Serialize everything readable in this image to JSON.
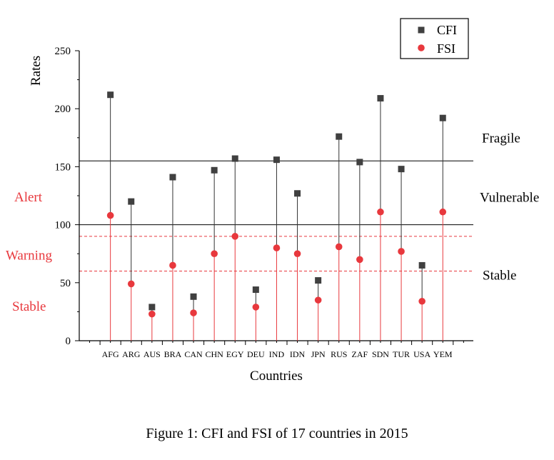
{
  "chart_data": {
    "type": "scatter",
    "style": "lollipop",
    "ylabel": "Rates",
    "xlabel": "Countries",
    "ylim": [
      0,
      250
    ],
    "yticks": [
      0,
      50,
      100,
      150,
      200,
      250
    ],
    "categories": [
      "AFG",
      "ARG",
      "AUS",
      "BRA",
      "CAN",
      "CHN",
      "EGY",
      "DEU",
      "IND",
      "IDN",
      "JPN",
      "RUS",
      "ZAF",
      "SDN",
      "TUR",
      "USA",
      "YEM"
    ],
    "series": [
      {
        "name": "CFI",
        "marker": "square",
        "color": "#404040",
        "values": [
          212,
          120,
          29,
          141,
          38,
          147,
          157,
          44,
          156,
          127,
          52,
          176,
          154,
          209,
          148,
          65,
          192
        ]
      },
      {
        "name": "FSI",
        "marker": "circle",
        "color": "#e8383d",
        "values": [
          108,
          49,
          23,
          65,
          24,
          75,
          90,
          29,
          80,
          75,
          35,
          81,
          70,
          111,
          77,
          34,
          111
        ]
      }
    ],
    "legend_position": "top-right",
    "reference_lines": [
      {
        "y": 155,
        "style": "solid",
        "color": "#000000",
        "label_above": "Fragile",
        "label_below": "Vulnerable"
      },
      {
        "y": 100,
        "style": "solid",
        "color": "#000000"
      },
      {
        "y": 90,
        "style": "dashed",
        "color": "#e8383d"
      },
      {
        "y": 60,
        "style": "dashed",
        "color": "#e8383d",
        "label_below": "Stable"
      }
    ],
    "left_labels": [
      {
        "text": "Alert",
        "y": 120
      },
      {
        "text": "Warning",
        "y": 70
      },
      {
        "text": "Stable",
        "y": 26
      }
    ]
  },
  "caption": "Figure 1: CFI and FSI of 17 countries in 2015"
}
